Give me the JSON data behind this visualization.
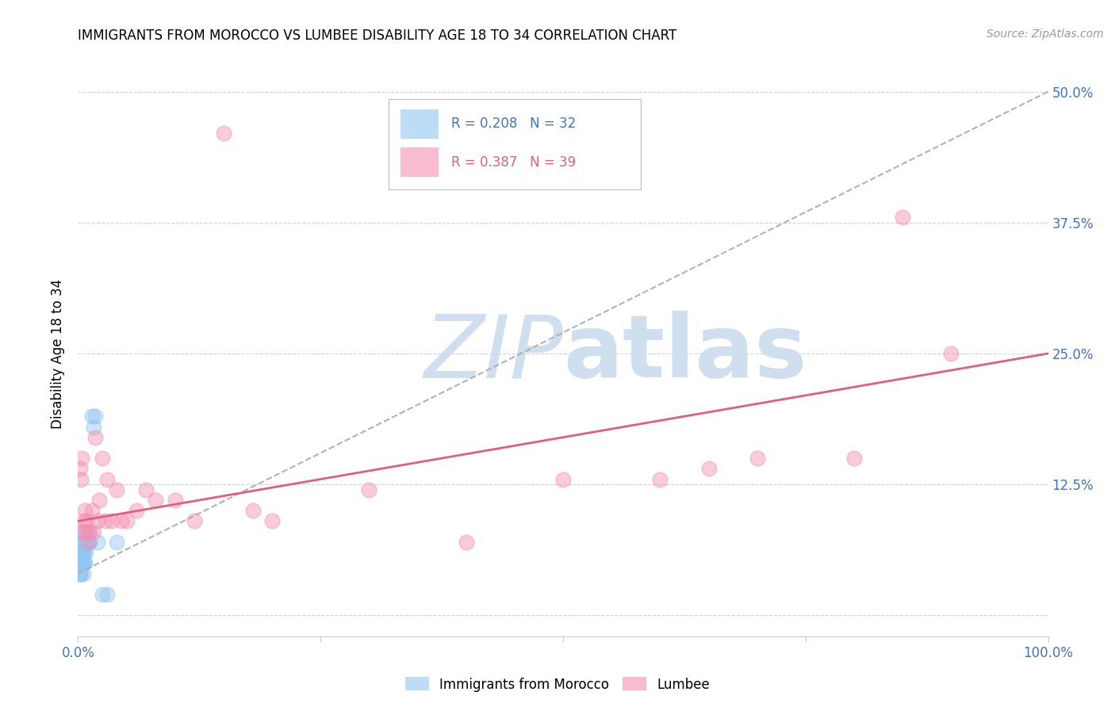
{
  "title": "IMMIGRANTS FROM MOROCCO VS LUMBEE DISABILITY AGE 18 TO 34 CORRELATION CHART",
  "source": "Source: ZipAtlas.com",
  "ylabel": "Disability Age 18 to 34",
  "xlim": [
    0.0,
    1.0
  ],
  "ylim": [
    -0.02,
    0.52
  ],
  "yticks": [
    0.0,
    0.125,
    0.25,
    0.375,
    0.5
  ],
  "ytick_labels": [
    "",
    "12.5%",
    "25.0%",
    "37.5%",
    "50.0%"
  ],
  "xticks": [
    0.0,
    0.25,
    0.5,
    0.75,
    1.0
  ],
  "xtick_labels": [
    "0.0%",
    "",
    "",
    "",
    "100.0%"
  ],
  "morocco_color": "#92C5F0",
  "lumbee_color": "#F48FB1",
  "morocco_R": 0.208,
  "morocco_N": 32,
  "lumbee_R": 0.387,
  "lumbee_N": 39,
  "watermark_zip": "ZIP",
  "watermark_atlas": "atlas",
  "watermark_color": "#D0DFF0",
  "tick_color": "#4472C4",
  "grid_color": "#CCCCCC",
  "morocco_scatter_x": [
    0.001,
    0.001,
    0.001,
    0.002,
    0.002,
    0.002,
    0.003,
    0.003,
    0.003,
    0.003,
    0.004,
    0.004,
    0.004,
    0.005,
    0.005,
    0.005,
    0.006,
    0.006,
    0.007,
    0.007,
    0.008,
    0.009,
    0.01,
    0.011,
    0.012,
    0.014,
    0.016,
    0.018,
    0.02,
    0.025,
    0.03,
    0.04
  ],
  "morocco_scatter_y": [
    0.04,
    0.05,
    0.06,
    0.04,
    0.05,
    0.07,
    0.04,
    0.05,
    0.06,
    0.08,
    0.05,
    0.06,
    0.07,
    0.04,
    0.05,
    0.06,
    0.05,
    0.06,
    0.05,
    0.07,
    0.06,
    0.07,
    0.08,
    0.07,
    0.07,
    0.19,
    0.18,
    0.19,
    0.07,
    0.02,
    0.02,
    0.07
  ],
  "lumbee_scatter_x": [
    0.002,
    0.003,
    0.004,
    0.005,
    0.006,
    0.007,
    0.008,
    0.009,
    0.01,
    0.012,
    0.014,
    0.016,
    0.018,
    0.02,
    0.022,
    0.025,
    0.028,
    0.03,
    0.035,
    0.04,
    0.045,
    0.05,
    0.06,
    0.07,
    0.08,
    0.1,
    0.12,
    0.15,
    0.18,
    0.2,
    0.3,
    0.4,
    0.5,
    0.6,
    0.65,
    0.7,
    0.8,
    0.85,
    0.9
  ],
  "lumbee_scatter_y": [
    0.14,
    0.13,
    0.15,
    0.08,
    0.09,
    0.1,
    0.08,
    0.09,
    0.07,
    0.08,
    0.1,
    0.08,
    0.17,
    0.09,
    0.11,
    0.15,
    0.09,
    0.13,
    0.09,
    0.12,
    0.09,
    0.09,
    0.1,
    0.12,
    0.11,
    0.11,
    0.09,
    0.46,
    0.1,
    0.09,
    0.12,
    0.07,
    0.13,
    0.13,
    0.14,
    0.15,
    0.15,
    0.38,
    0.25
  ],
  "morocco_line_x": [
    0.0,
    1.0
  ],
  "morocco_line_y": [
    0.04,
    0.5
  ],
  "lumbee_line_x": [
    0.0,
    1.0
  ],
  "lumbee_line_y": [
    0.09,
    0.25
  ],
  "morocco_line_color": "#AAAAAA",
  "lumbee_line_color": "#E0607A"
}
